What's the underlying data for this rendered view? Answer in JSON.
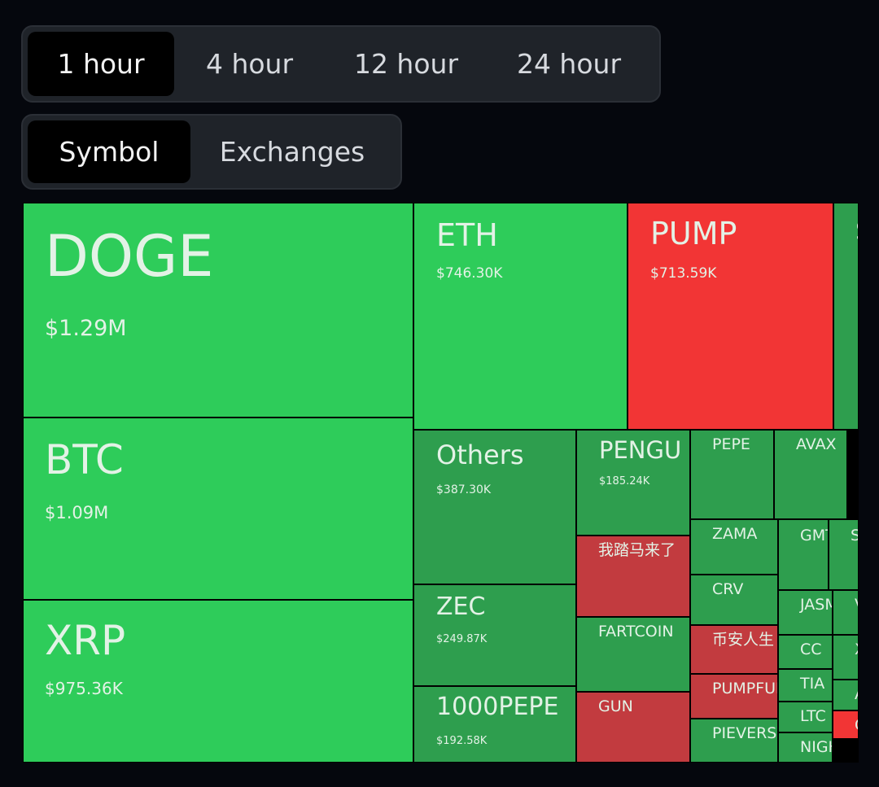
{
  "time_tabs": [
    "1 hour",
    "4 hour",
    "12 hour",
    "24 hour"
  ],
  "group_tabs": [
    "Symbol",
    "Exchanges"
  ],
  "tiles": [
    {
      "label": "DOGE",
      "value": "$1.29M"
    },
    {
      "label": "BTC",
      "value": "$1.09M"
    },
    {
      "label": "XRP",
      "value": "$975.36K"
    },
    {
      "label": "ETH",
      "value": "$746.30K"
    },
    {
      "label": "PUMP",
      "value": "$713.59K"
    },
    {
      "label": "S"
    },
    {
      "label": "Others",
      "value": "$387.30K"
    },
    {
      "label": "PENGU",
      "value": "$185.24K"
    },
    {
      "label": "PEPE"
    },
    {
      "label": "AVAX"
    },
    {
      "label": "我踏马来了"
    },
    {
      "label": "ZAMA"
    },
    {
      "label": "GMT"
    },
    {
      "label": "S"
    },
    {
      "label": "ZEC",
      "value": "$249.87K"
    },
    {
      "label": "CRV"
    },
    {
      "label": "FARTCOIN"
    },
    {
      "label": "JASMY"
    },
    {
      "label": "V"
    },
    {
      "label": "币安人生"
    },
    {
      "label": "CC"
    },
    {
      "label": "X"
    },
    {
      "label": "1000PEPE",
      "value": "$192.58K"
    },
    {
      "label": "GUN"
    },
    {
      "label": "PUMPFUN"
    },
    {
      "label": "TIA"
    },
    {
      "label": "A"
    },
    {
      "label": "PIEVERSE"
    },
    {
      "label": "LTC"
    },
    {
      "label": "C"
    },
    {
      "label": "NIGHT"
    }
  ]
}
